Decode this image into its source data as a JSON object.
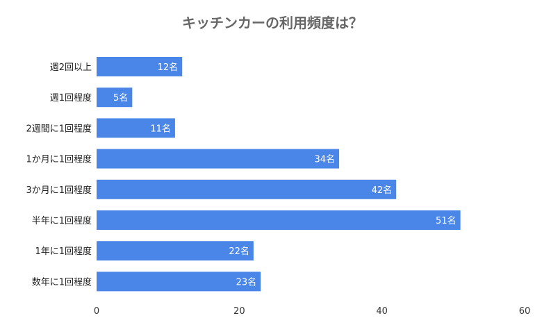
{
  "chart_data": {
    "type": "bar",
    "orientation": "horizontal",
    "title": "キッチンカーの利用頻度は？",
    "categories": [
      "週2回以上",
      "週1回程度",
      "2週間に1回程度",
      "1か月に1回程度",
      "3か月に1回程度",
      "半年に1回程度",
      "1年に1回程度",
      "数年に1回程度"
    ],
    "values": [
      12,
      5,
      11,
      34,
      42,
      51,
      22,
      23
    ],
    "data_labels": [
      "12名",
      "5名",
      "11名",
      "34名",
      "42名",
      "51名",
      "22名",
      "23名"
    ],
    "unit": "名",
    "xlim": [
      0,
      60
    ],
    "x_ticks": [
      0,
      20,
      40,
      60
    ],
    "grid": false,
    "legend": "none",
    "bar_color": "#4a86e8",
    "title_color": "#666666"
  }
}
